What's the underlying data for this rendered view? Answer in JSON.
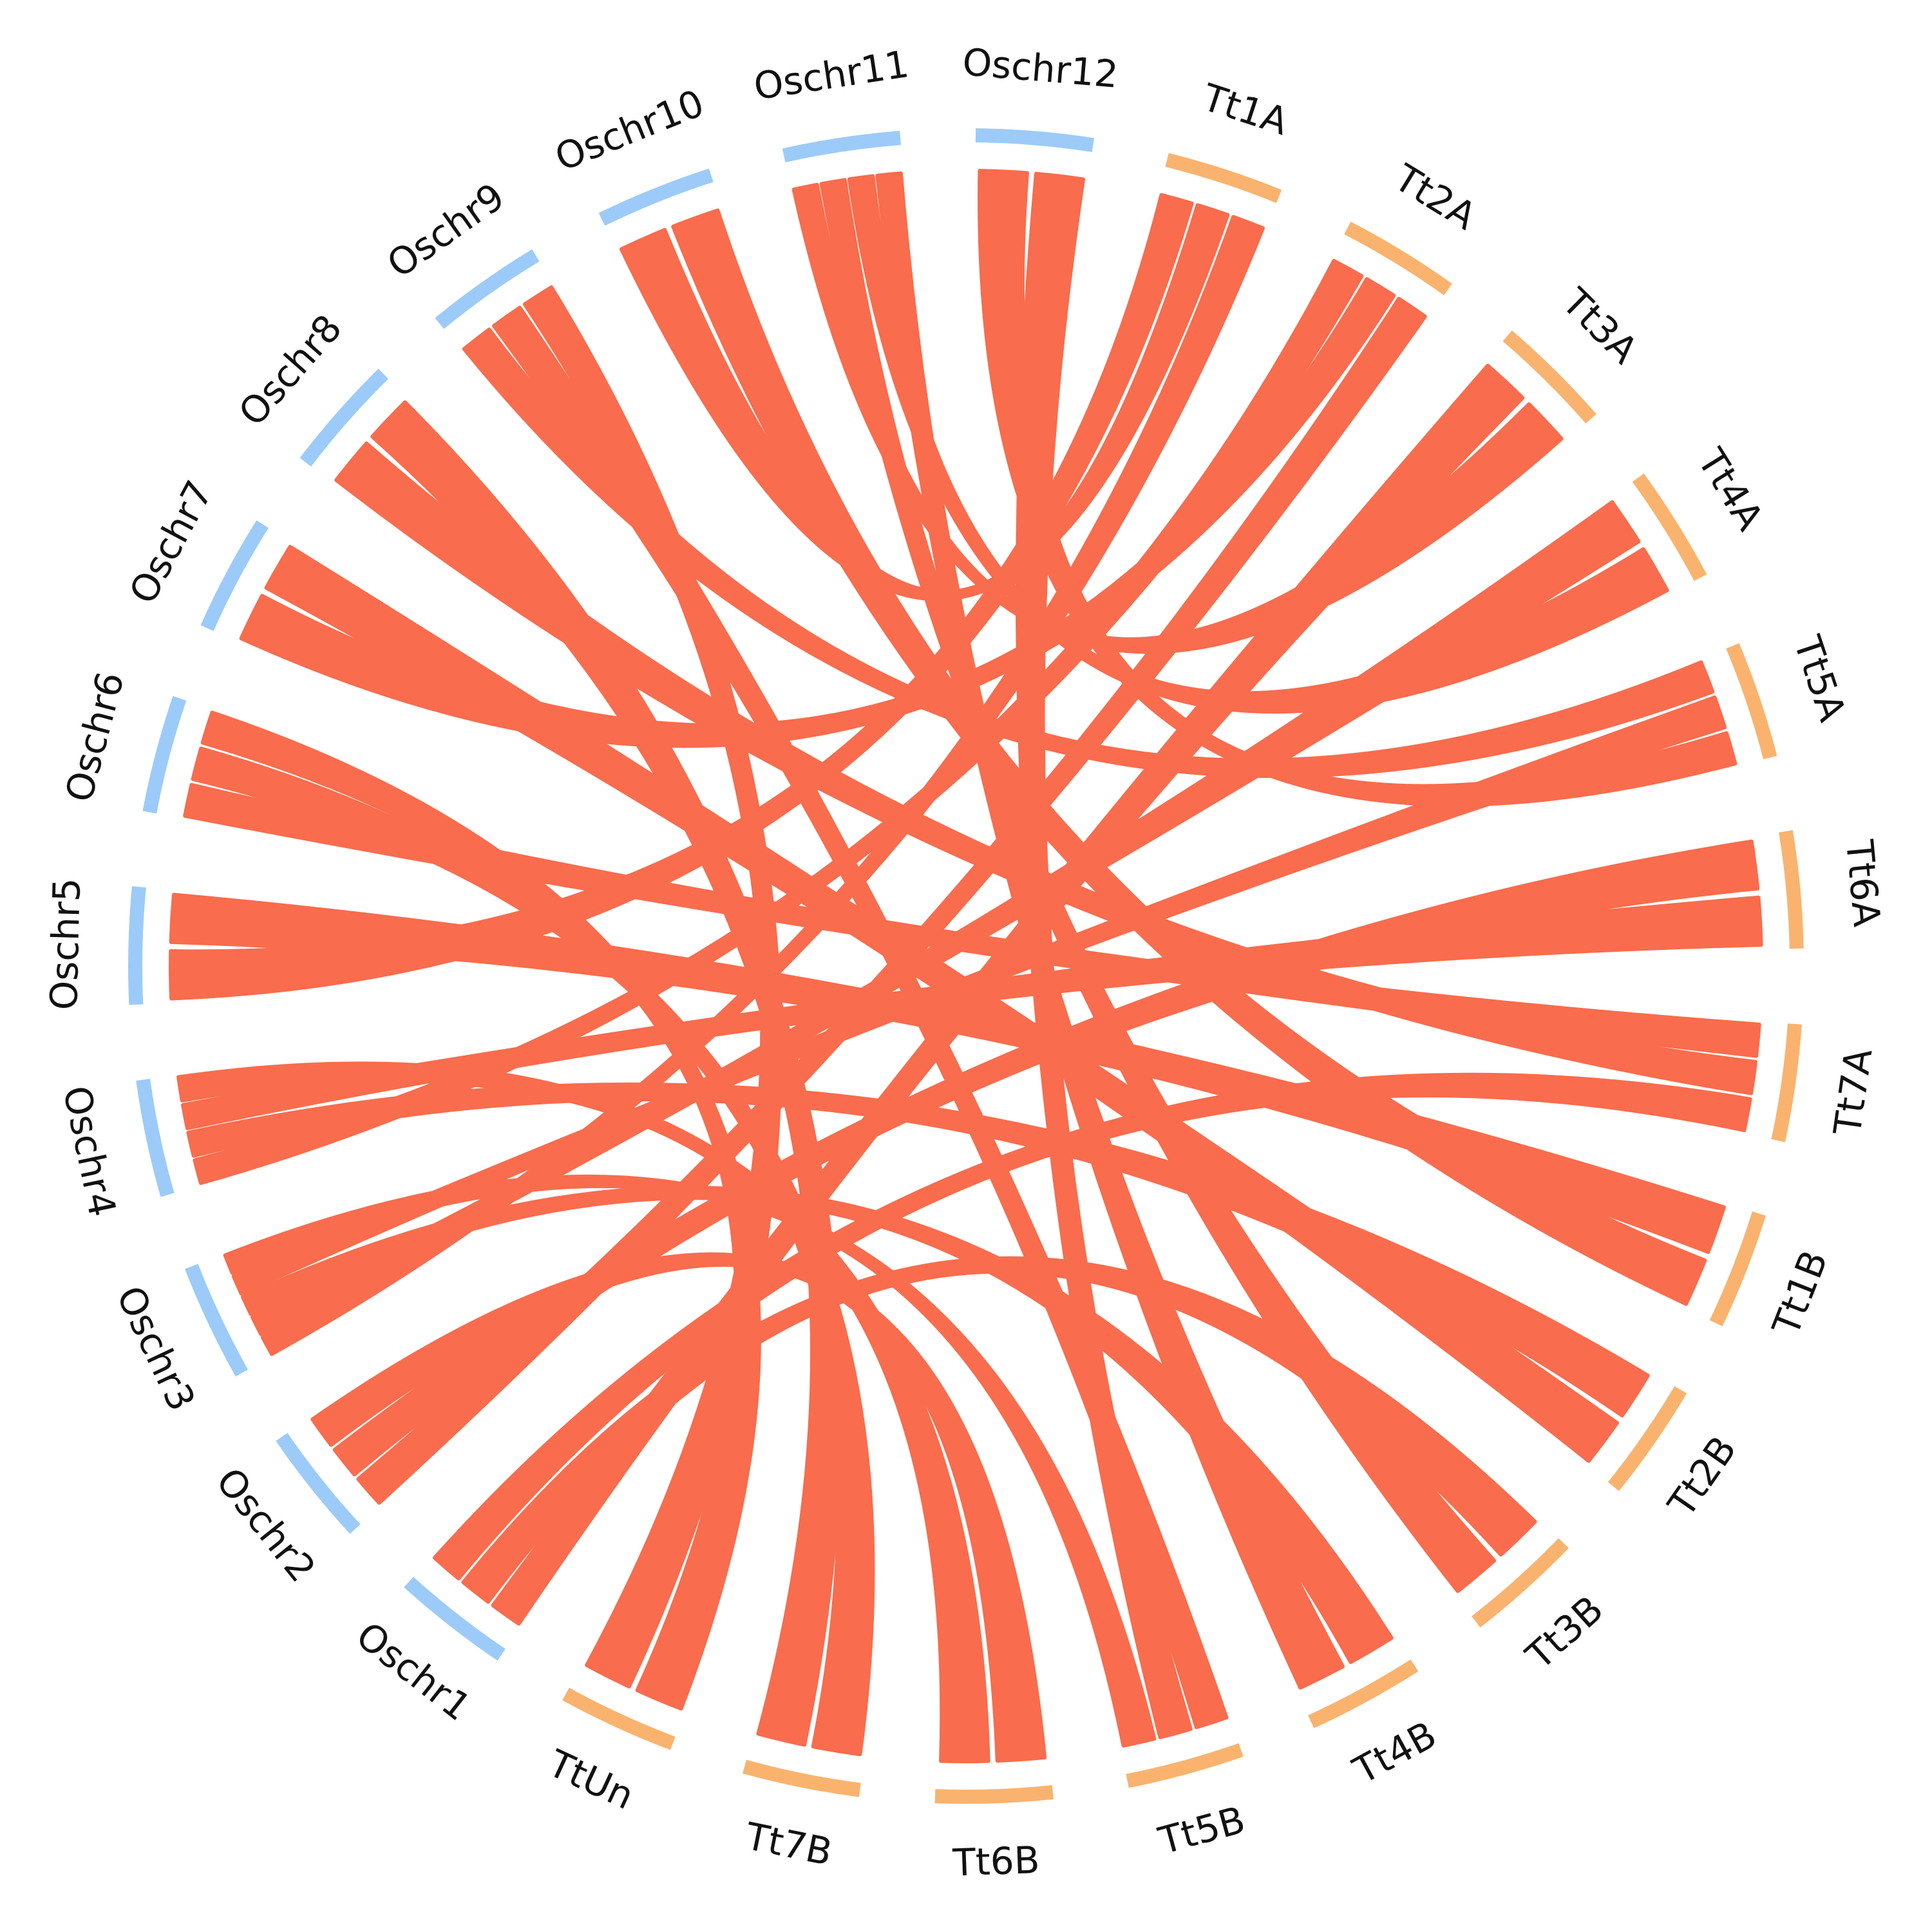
{
  "colors": {
    "rice": "#9ccbf9",
    "wheat": "#fab36e",
    "links": "#f96c4d",
    "text": "#111111"
  },
  "chromosomes": [
    {
      "name": "Tt1A",
      "species": "wheat"
    },
    {
      "name": "Tt2A",
      "species": "wheat"
    },
    {
      "name": "Tt3A",
      "species": "wheat"
    },
    {
      "name": "Tt4A",
      "species": "wheat"
    },
    {
      "name": "Tt5A",
      "species": "wheat"
    },
    {
      "name": "Tt6A",
      "species": "wheat"
    },
    {
      "name": "Tt7A",
      "species": "wheat"
    },
    {
      "name": "Tt1B",
      "species": "wheat"
    },
    {
      "name": "Tt2B",
      "species": "wheat"
    },
    {
      "name": "Tt3B",
      "species": "wheat"
    },
    {
      "name": "Tt4B",
      "species": "wheat"
    },
    {
      "name": "Tt5B",
      "species": "wheat"
    },
    {
      "name": "Tt6B",
      "species": "wheat"
    },
    {
      "name": "Tt7B",
      "species": "wheat"
    },
    {
      "name": "TtUn",
      "species": "wheat"
    },
    {
      "name": "Oschr1",
      "species": "rice"
    },
    {
      "name": "Oschr2",
      "species": "rice"
    },
    {
      "name": "Oschr3",
      "species": "rice"
    },
    {
      "name": "Oschr4",
      "species": "rice"
    },
    {
      "name": "Oschr5",
      "species": "rice"
    },
    {
      "name": "Oschr6",
      "species": "rice"
    },
    {
      "name": "Oschr7",
      "species": "rice"
    },
    {
      "name": "Oschr8",
      "species": "rice"
    },
    {
      "name": "Oschr9",
      "species": "rice"
    },
    {
      "name": "Oschr10",
      "species": "rice"
    },
    {
      "name": "Oschr11",
      "species": "rice"
    },
    {
      "name": "Oschr12",
      "species": "rice"
    }
  ],
  "links": [
    [
      "Tt1A",
      "Oschr5"
    ],
    [
      "Tt1A",
      "Oschr10"
    ],
    [
      "Tt1A",
      "Oschr3"
    ],
    [
      "Tt1B",
      "Oschr5"
    ],
    [
      "Tt1B",
      "Oschr10"
    ],
    [
      "Tt2A",
      "Oschr4"
    ],
    [
      "Tt2A",
      "Oschr7"
    ],
    [
      "Tt2A",
      "Oschr2"
    ],
    [
      "Tt2B",
      "Oschr4"
    ],
    [
      "Tt2B",
      "Oschr7"
    ],
    [
      "Tt3A",
      "Oschr1"
    ],
    [
      "Tt3A",
      "Oschr11"
    ],
    [
      "Tt3B",
      "Oschr1"
    ],
    [
      "Tt3B",
      "Oschr11"
    ],
    [
      "Tt4A",
      "Oschr3"
    ],
    [
      "Tt4A",
      "Oschr11"
    ],
    [
      "Tt4B",
      "Oschr3"
    ],
    [
      "Tt4B",
      "Oschr11"
    ],
    [
      "Tt5A",
      "Oschr9"
    ],
    [
      "Tt5A",
      "Oschr3"
    ],
    [
      "Tt5A",
      "Oschr12"
    ],
    [
      "Tt5B",
      "Oschr9"
    ],
    [
      "Tt5B",
      "Oschr12"
    ],
    [
      "Tt5B",
      "Oschr3"
    ],
    [
      "Tt6A",
      "Oschr2"
    ],
    [
      "Tt6A",
      "Oschr4"
    ],
    [
      "Tt6B",
      "Oschr2"
    ],
    [
      "Tt6B",
      "Oschr4"
    ],
    [
      "Tt7A",
      "Oschr6"
    ],
    [
      "Tt7A",
      "Oschr8"
    ],
    [
      "Tt7A",
      "Oschr1"
    ],
    [
      "Tt7B",
      "Oschr6"
    ],
    [
      "Tt7B",
      "Oschr8"
    ],
    [
      "TtUn",
      "Oschr6"
    ],
    [
      "TtUn",
      "Oschr9"
    ]
  ]
}
